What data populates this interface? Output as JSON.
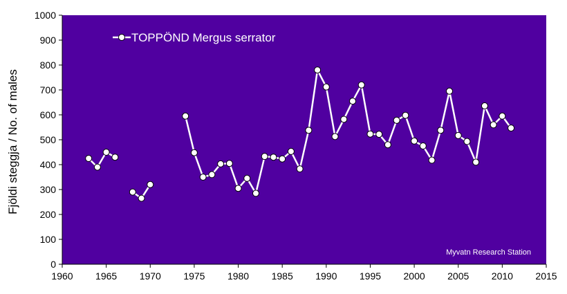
{
  "chart_data": {
    "type": "line",
    "xlabel": "",
    "ylabel": "Fjöldi steggja / No. of males",
    "xlim": [
      1960,
      2015
    ],
    "ylim": [
      0,
      1000
    ],
    "xticks": [
      1960,
      1965,
      1970,
      1975,
      1980,
      1985,
      1990,
      1995,
      2000,
      2005,
      2010,
      2015
    ],
    "yticks": [
      0,
      100,
      200,
      300,
      400,
      500,
      600,
      700,
      800,
      900,
      1000
    ],
    "grid": false,
    "legend_position": "top-left",
    "annotation": "Myvatn Research Station",
    "colors": {
      "plot_background": "#5000A0",
      "line": "#ffffff",
      "marker_fill": "#ffffff",
      "marker_stroke": "#000000"
    },
    "series": [
      {
        "name": "TOPPÖND Mergus serrator",
        "segments": [
          [
            [
              1963,
              425
            ],
            [
              1964,
              390
            ],
            [
              1965,
              450
            ],
            [
              1966,
              430
            ]
          ],
          [
            [
              1968,
              290
            ],
            [
              1969,
              265
            ],
            [
              1970,
              320
            ]
          ],
          [
            [
              1974,
              595
            ],
            [
              1975,
              448
            ],
            [
              1976,
              350
            ],
            [
              1977,
              360
            ],
            [
              1978,
              403
            ],
            [
              1979,
              405
            ],
            [
              1980,
              305
            ],
            [
              1981,
              345
            ],
            [
              1982,
              285
            ],
            [
              1983,
              433
            ],
            [
              1984,
              430
            ],
            [
              1985,
              423
            ],
            [
              1986,
              453
            ],
            [
              1987,
              383
            ],
            [
              1988,
              538
            ],
            [
              1989,
              780
            ],
            [
              1990,
              712
            ],
            [
              1991,
              513
            ],
            [
              1992,
              582
            ],
            [
              1993,
              655
            ],
            [
              1994,
              720
            ],
            [
              1995,
              523
            ],
            [
              1996,
              522
            ],
            [
              1997,
              480
            ],
            [
              1998,
              578
            ],
            [
              1999,
              598
            ],
            [
              2000,
              495
            ],
            [
              2001,
              475
            ],
            [
              2002,
              418
            ],
            [
              2003,
              538
            ],
            [
              2004,
              695
            ],
            [
              2005,
              517
            ],
            [
              2006,
              493
            ],
            [
              2007,
              410
            ],
            [
              2008,
              636
            ],
            [
              2009,
              560
            ],
            [
              2010,
              595
            ],
            [
              2011,
              547
            ]
          ]
        ]
      }
    ]
  }
}
